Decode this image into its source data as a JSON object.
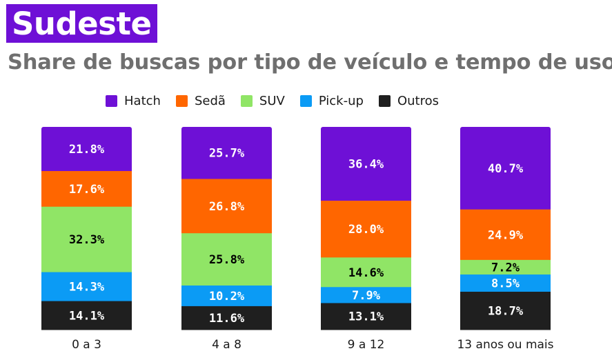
{
  "header": {
    "badge": "Sudeste",
    "subtitle": "Share de buscas por tipo de veículo e tempo de uso"
  },
  "colors": {
    "Hatch": "#6e10d6",
    "Sedã": "#ff6600",
    "SUV": "#90e566",
    "Pick-up": "#0b9bf5",
    "Outros": "#1f1f1f"
  },
  "legend": {
    "items": [
      "Hatch",
      "Sedã",
      "SUV",
      "Pick-up",
      "Outros"
    ]
  },
  "chart_data": {
    "type": "bar",
    "stacked": true,
    "categories": [
      "0 a 3",
      "4 a 8",
      "9 a 12",
      "13 anos ou mais"
    ],
    "series": [
      {
        "name": "Hatch",
        "values": [
          21.8,
          25.7,
          36.4,
          40.7
        ]
      },
      {
        "name": "Sedã",
        "values": [
          17.6,
          26.8,
          28.0,
          24.9
        ]
      },
      {
        "name": "SUV",
        "values": [
          32.3,
          25.8,
          14.6,
          7.2
        ]
      },
      {
        "name": "Pick-up",
        "values": [
          14.3,
          10.2,
          7.9,
          8.5
        ]
      },
      {
        "name": "Outros",
        "values": [
          14.1,
          11.6,
          13.1,
          18.7
        ]
      }
    ],
    "labels": [
      [
        "21.8%",
        "25.7%",
        "36.4%",
        "40.7%"
      ],
      [
        "17.6%",
        "26.8%",
        "28.0%",
        "24.9%"
      ],
      [
        "32.3%",
        "25.8%",
        "14.6%",
        "7.2%"
      ],
      [
        "14.3%",
        "10.2%",
        "7.9%",
        "8.5%"
      ],
      [
        "14.1%",
        "11.6%",
        "13.1%",
        "18.7%"
      ]
    ],
    "label_colors": [
      "#ffffff",
      "#ffffff",
      "#000000",
      "#ffffff",
      "#ffffff"
    ],
    "ylim": [
      0,
      100
    ],
    "grid": false,
    "legend_position": "top"
  }
}
